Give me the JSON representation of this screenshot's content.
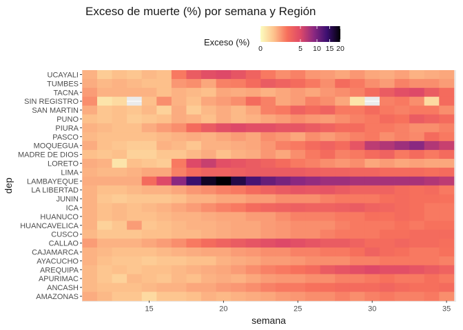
{
  "chart_data": {
    "type": "heatmap",
    "title": "Exceso de muerte (%) por semana y Región",
    "xlabel": "semana",
    "ylabel": "dep",
    "x_ticks": [
      15,
      20,
      25,
      30,
      35
    ],
    "x_range": [
      11,
      35
    ],
    "legend": {
      "title": "Exceso (%)",
      "placement": "top",
      "ticks": [
        0,
        5,
        10,
        15,
        20
      ],
      "tick_labels": [
        "0",
        "5",
        "10",
        "15",
        "20"
      ],
      "colormap": [
        "#fcfdbf",
        "#fdc38d",
        "#f7705c",
        "#de4968",
        "#8c2981",
        "#3b0f70",
        "#000004"
      ]
    },
    "categories": [
      "UCAYALI",
      "TUMBES",
      "TACNA",
      "SIN REGISTRO",
      "SAN MARTIN",
      "PUNO",
      "PIURA",
      "PASCO",
      "MOQUEGUA",
      "MADRE DE DIOS",
      "LORETO",
      "LIMA",
      "LAMBAYEQUE",
      "LA LIBERTAD",
      "JUNIN",
      "ICA",
      "HUANUCO",
      "HUANCAVELICA",
      "CUSCO",
      "CALLAO",
      "CAJAMARCA",
      "AYACUCHO",
      "AREQUIPA",
      "APURIMAC",
      "ANCASH",
      "AMAZONAS"
    ],
    "x": [
      11,
      12,
      13,
      14,
      15,
      16,
      17,
      18,
      19,
      20,
      21,
      22,
      23,
      24,
      25,
      26,
      27,
      28,
      29,
      30,
      31,
      32,
      33,
      34,
      35
    ],
    "values": [
      [
        0.8,
        0.4,
        0.6,
        0.5,
        0.7,
        0.6,
        2.0,
        3.5,
        4.5,
        5.0,
        4.0,
        3.0,
        2.0,
        1.5,
        1.8,
        1.3,
        1.2,
        1.0,
        1.3,
        1.0,
        0.9,
        1.1,
        0.8,
        0.9,
        1.0
      ],
      [
        0.9,
        0.7,
        0.8,
        0.7,
        0.6,
        0.6,
        1.3,
        1.5,
        1.0,
        1.8,
        1.9,
        2.5,
        3.5,
        3.0,
        2.5,
        2.0,
        1.5,
        2.5,
        2.0,
        1.5,
        1.2,
        1.8,
        1.5,
        1.5,
        1.2
      ],
      [
        1.2,
        0.8,
        0.8,
        0.8,
        0.8,
        0.6,
        0.8,
        0.7,
        0.6,
        1.0,
        0.9,
        1.0,
        0.8,
        1.0,
        1.2,
        1.0,
        1.3,
        1.5,
        1.8,
        2.5,
        3.5,
        4.5,
        5.0,
        3.5,
        2.5
      ],
      [
        1.5,
        0.1,
        0.2,
        null,
        0.6,
        1.5,
        0.8,
        0.6,
        1.0,
        1.2,
        1.5,
        2.5,
        1.8,
        1.0,
        1.2,
        1.8,
        1.5,
        1.0,
        0.1,
        null,
        1.8,
        2.0,
        1.5,
        0.2,
        2.5
      ],
      [
        0.9,
        0.5,
        0.6,
        0.5,
        0.7,
        0.3,
        0.9,
        0.4,
        0.7,
        0.9,
        0.7,
        1.0,
        1.8,
        2.0,
        3.0,
        2.5,
        3.0,
        2.0,
        2.0,
        2.5,
        2.0,
        1.8,
        2.0,
        2.0,
        1.5
      ],
      [
        0.6,
        0.5,
        0.6,
        0.4,
        0.5,
        0.6,
        0.9,
        0.8,
        0.6,
        0.9,
        0.7,
        0.8,
        1.0,
        1.2,
        1.5,
        1.3,
        1.2,
        1.5,
        1.8,
        2.0,
        2.5,
        2.2,
        3.5,
        3.0,
        2.5
      ],
      [
        0.8,
        0.7,
        0.6,
        0.6,
        0.9,
        1.2,
        1.5,
        2.5,
        3.5,
        4.5,
        5.0,
        4.5,
        4.5,
        4.0,
        4.0,
        3.5,
        3.0,
        2.5,
        2.5,
        2.0,
        2.0,
        1.8,
        1.5,
        1.5,
        1.8
      ],
      [
        0.7,
        0.6,
        0.6,
        0.6,
        0.6,
        0.7,
        0.8,
        0.9,
        0.8,
        1.0,
        1.2,
        1.0,
        1.5,
        1.3,
        1.0,
        1.5,
        1.2,
        1.5,
        1.8,
        2.0,
        1.5,
        1.8,
        1.6,
        2.5,
        2.0
      ],
      [
        0.9,
        0.6,
        0.5,
        0.4,
        0.4,
        0.8,
        0.7,
        0.5,
        0.8,
        0.8,
        0.9,
        1.0,
        1.3,
        1.8,
        2.0,
        2.5,
        3.0,
        2.5,
        4.0,
        6.5,
        7.0,
        8.0,
        9.0,
        7.0,
        6.0
      ],
      [
        0.6,
        0.5,
        0.6,
        0.3,
        0.3,
        0.5,
        0.5,
        0.7,
        0.9,
        0.6,
        0.8,
        0.9,
        1.3,
        1.0,
        1.5,
        2.0,
        2.5,
        1.8,
        2.0,
        2.5,
        3.0,
        2.0,
        2.5,
        2.0,
        2.5
      ],
      [
        0.9,
        0.8,
        0.1,
        0.6,
        0.5,
        0.4,
        2.0,
        5.0,
        6.0,
        4.5,
        4.0,
        3.5,
        3.0,
        2.5,
        2.0,
        1.8,
        1.5,
        1.3,
        1.5,
        1.0,
        1.2,
        1.0,
        1.1,
        1.0,
        1.0
      ],
      [
        0.8,
        0.7,
        0.7,
        0.8,
        1.0,
        1.0,
        1.8,
        2.5,
        3.0,
        3.0,
        3.2,
        3.5,
        3.5,
        3.5,
        3.5,
        3.2,
        3.0,
        3.0,
        2.8,
        2.8,
        2.5,
        2.5,
        2.5,
        2.3,
        2.5
      ],
      [
        0.9,
        0.9,
        0.9,
        0.9,
        2.5,
        5.0,
        9.0,
        14.0,
        18.0,
        20.0,
        16.0,
        13.0,
        11.0,
        10.0,
        9.0,
        8.5,
        8.0,
        8.0,
        7.5,
        7.5,
        7.5,
        7.5,
        7.5,
        7.0,
        6.5
      ],
      [
        0.8,
        0.6,
        0.6,
        0.7,
        0.8,
        0.8,
        1.0,
        1.3,
        1.5,
        1.8,
        2.0,
        2.5,
        3.0,
        3.5,
        4.0,
        3.8,
        4.0,
        3.5,
        3.0,
        3.0,
        3.0,
        2.5,
        2.3,
        2.5,
        2.0
      ],
      [
        0.8,
        0.5,
        0.4,
        0.5,
        0.5,
        0.5,
        0.6,
        0.8,
        0.8,
        1.0,
        1.0,
        1.2,
        1.2,
        1.5,
        1.5,
        1.5,
        1.8,
        2.0,
        2.0,
        2.0,
        2.3,
        2.5,
        2.3,
        2.3,
        2.2
      ],
      [
        0.8,
        0.6,
        0.7,
        0.6,
        0.7,
        0.8,
        1.0,
        1.2,
        1.5,
        1.8,
        2.0,
        2.5,
        2.8,
        3.0,
        3.2,
        3.0,
        3.0,
        3.2,
        3.5,
        3.0,
        2.8,
        2.5,
        2.3,
        2.0,
        2.0
      ],
      [
        0.8,
        0.6,
        0.7,
        0.6,
        0.6,
        0.7,
        0.8,
        0.8,
        0.9,
        1.0,
        1.0,
        1.2,
        1.2,
        1.5,
        1.8,
        1.8,
        1.8,
        2.0,
        2.0,
        2.3,
        2.2,
        2.5,
        2.3,
        2.0,
        2.0
      ],
      [
        0.8,
        0.3,
        0.5,
        1.2,
        0.5,
        0.6,
        0.7,
        0.8,
        0.8,
        0.9,
        1.0,
        1.0,
        1.2,
        1.3,
        1.5,
        1.5,
        1.5,
        1.8,
        2.0,
        2.0,
        2.0,
        2.2,
        2.0,
        2.2,
        2.2
      ],
      [
        0.7,
        0.5,
        0.5,
        0.5,
        0.6,
        0.6,
        0.7,
        0.7,
        0.8,
        0.9,
        1.0,
        1.0,
        1.2,
        1.3,
        1.5,
        1.5,
        1.8,
        2.0,
        2.0,
        2.0,
        2.3,
        2.3,
        2.5,
        2.5,
        2.5
      ],
      [
        1.2,
        0.8,
        0.8,
        0.8,
        1.0,
        1.2,
        1.5,
        2.0,
        2.5,
        3.0,
        3.5,
        4.0,
        4.5,
        5.0,
        4.5,
        4.0,
        3.5,
        3.5,
        3.0,
        2.5,
        2.5,
        2.8,
        2.5,
        2.5,
        2.3
      ],
      [
        0.8,
        0.7,
        0.6,
        0.6,
        0.6,
        0.7,
        0.8,
        0.9,
        1.0,
        1.0,
        1.2,
        1.3,
        1.5,
        1.5,
        1.8,
        1.8,
        2.0,
        2.0,
        2.3,
        3.0,
        2.5,
        2.3,
        2.0,
        2.0,
        2.2
      ],
      [
        0.8,
        0.6,
        0.5,
        0.5,
        0.4,
        0.5,
        0.5,
        0.6,
        0.6,
        0.8,
        0.9,
        1.0,
        1.2,
        1.2,
        1.3,
        1.5,
        1.5,
        1.5,
        1.8,
        1.8,
        2.0,
        2.0,
        2.0,
        2.0,
        1.8
      ],
      [
        0.7,
        0.5,
        0.6,
        0.5,
        0.6,
        0.6,
        0.7,
        0.8,
        0.9,
        1.0,
        1.2,
        1.5,
        1.8,
        2.0,
        2.2,
        2.5,
        3.5,
        4.0,
        4.5,
        5.0,
        4.5,
        4.5,
        4.0,
        3.5,
        3.0
      ],
      [
        0.7,
        0.5,
        0.3,
        0.7,
        0.6,
        0.5,
        0.7,
        0.6,
        0.8,
        0.9,
        0.8,
        1.0,
        1.2,
        1.3,
        1.3,
        1.5,
        1.5,
        1.8,
        1.8,
        2.0,
        2.2,
        2.0,
        2.0,
        2.3,
        2.0
      ],
      [
        0.7,
        0.6,
        0.6,
        0.6,
        0.7,
        0.8,
        0.8,
        1.0,
        1.0,
        1.2,
        1.3,
        1.5,
        1.8,
        2.0,
        2.0,
        2.2,
        2.3,
        2.5,
        2.5,
        2.5,
        2.8,
        2.5,
        2.3,
        2.3,
        2.5
      ],
      [
        0.9,
        0.7,
        0.5,
        0.5,
        0.2,
        0.5,
        0.5,
        0.6,
        0.8,
        0.7,
        0.8,
        0.9,
        1.0,
        1.2,
        1.3,
        1.5,
        1.5,
        1.8,
        1.5,
        1.8,
        2.0,
        1.8,
        1.8,
        2.0,
        1.5
      ]
    ]
  }
}
